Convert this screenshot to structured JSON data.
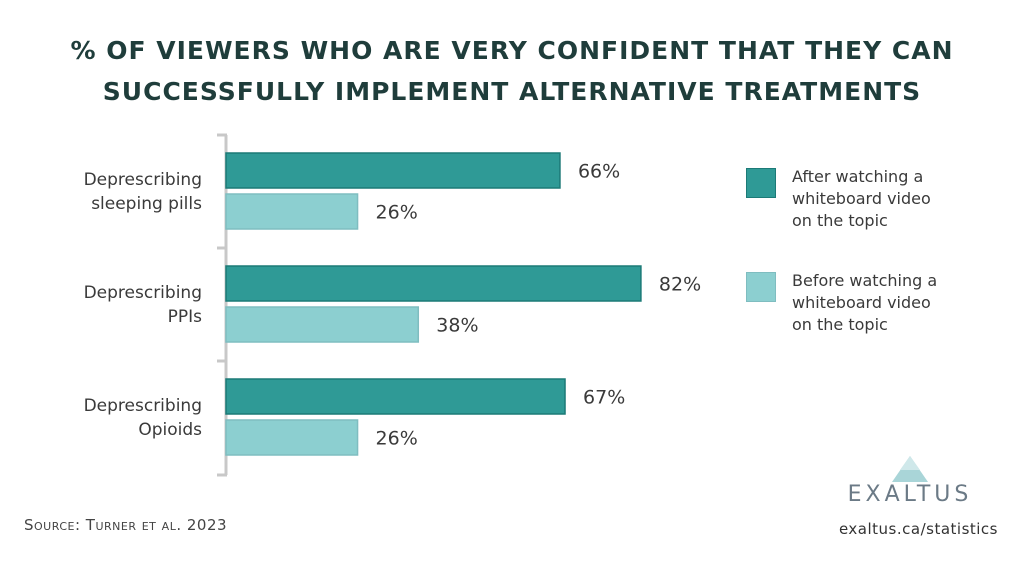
{
  "title_lines": [
    "% of viewers who are very confident that they can",
    "successfully implement alternative treatments"
  ],
  "colors": {
    "after": "#2f9a96",
    "before": "#8ccfd0",
    "border": "#1c7a77",
    "axis": "#c8c8c8"
  },
  "chart_data": {
    "type": "bar",
    "orientation": "horizontal",
    "title": "% of viewers who are very confident that they can successfully implement alternative treatments",
    "categories": [
      {
        "lines": [
          "Deprescribing",
          "sleeping pills"
        ]
      },
      {
        "lines": [
          "Deprescribing",
          "PPIs"
        ]
      },
      {
        "lines": [
          "Deprescribing",
          "Opioids"
        ]
      }
    ],
    "series": [
      {
        "name": "After watching a whiteboard video on the topic",
        "values": [
          66,
          82,
          67
        ],
        "labels": [
          "66%",
          "82%",
          "67%"
        ]
      },
      {
        "name": "Before watching a whiteboard video on the topic",
        "values": [
          26,
          38,
          26
        ],
        "labels": [
          "26%",
          "38%",
          "26%"
        ]
      }
    ],
    "xlim": [
      0,
      100
    ],
    "grid": false,
    "legend_position": "right"
  },
  "legend": [
    {
      "text": "After watching a\nwhiteboard video\non the topic"
    },
    {
      "text": "Before watching a\nwhiteboard video\non the topic"
    }
  ],
  "source": "Source: Turner et al. 2023",
  "logo_text": "EXALTUS",
  "url": "exaltus.ca/statistics"
}
